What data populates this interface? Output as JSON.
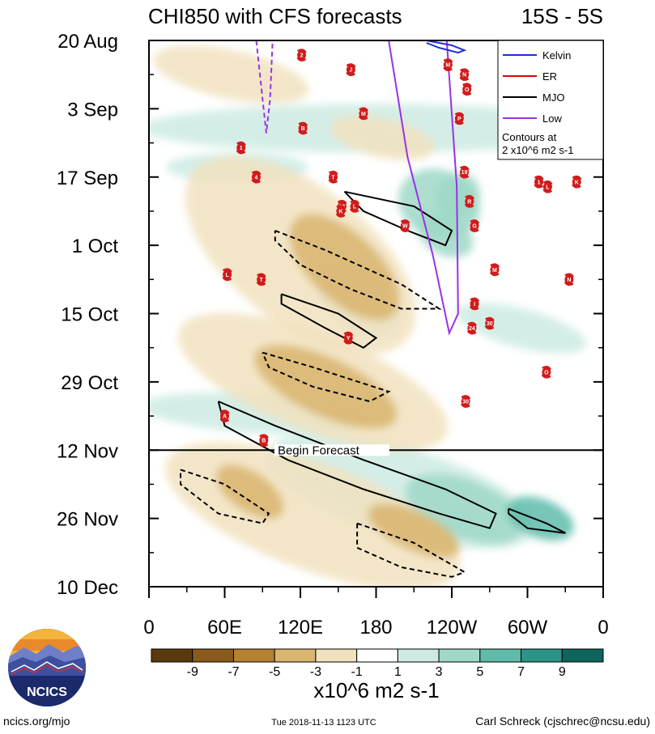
{
  "chart_data": {
    "type": "heatmap",
    "title_left": "CHI850 with CFS forecasts",
    "title_right": "15S - 5S",
    "x_ticks": [
      "0",
      "60E",
      "120E",
      "180",
      "120W",
      "60W",
      "0"
    ],
    "x_tick_values": [
      0,
      60,
      120,
      180,
      240,
      300,
      360
    ],
    "y_ticks": [
      "20 Aug",
      "3 Sep",
      "17 Sep",
      "1 Oct",
      "15 Oct",
      "29 Oct",
      "12 Nov",
      "26 Nov",
      "10 Dec"
    ],
    "y_tick_days": [
      0,
      14,
      28,
      42,
      56,
      70,
      84,
      98,
      112
    ],
    "forecast_start_day": 84,
    "forecast_label": "Begin Forecast",
    "colorbar": {
      "levels": [
        -11,
        -9,
        -7,
        -5,
        -3,
        -1,
        1,
        3,
        5,
        7,
        9,
        11
      ],
      "tick_labels": [
        "-9",
        "-7",
        "-5",
        "-3",
        "-1",
        "1",
        "3",
        "5",
        "7",
        "9"
      ],
      "colors": [
        "#5a3a0c",
        "#8a5a1c",
        "#b7802e",
        "#d9b56e",
        "#f1e2be",
        "#ffffff",
        "#cdebe3",
        "#9fd8c8",
        "#5fbcaa",
        "#2a9486",
        "#0c665c"
      ],
      "units": "x10^6 m2 s-1"
    },
    "legend": {
      "placement": "top-right",
      "entries": [
        {
          "label": "Kelvin",
          "color": "#1f2fdc",
          "dash": false
        },
        {
          "label": "ER",
          "color": "#e00000",
          "dash": false
        },
        {
          "label": "MJO",
          "color": "#000000",
          "dash": false
        },
        {
          "label": "Low",
          "color": "#9b30e6",
          "dash": false
        }
      ],
      "note_line1": "Contours at",
      "note_line2": "2 x10^6 m2 s-1"
    },
    "anomaly_blobs": [
      {
        "sign": 1,
        "v": 2.5,
        "pts": [
          [
            0,
            18
          ],
          [
            360,
            18
          ]
        ],
        "w": 5
      },
      {
        "sign": 1,
        "v": 3.5,
        "pts": [
          [
            205,
            31
          ],
          [
            255,
            36
          ]
        ],
        "w": 7
      },
      {
        "sign": 1,
        "v": 4.5,
        "pts": [
          [
            235,
            31
          ],
          [
            255,
            33
          ]
        ],
        "w": 5
      },
      {
        "sign": 1,
        "v": 4.5,
        "pts": [
          [
            220,
            38
          ],
          [
            250,
            42
          ]
        ],
        "w": 4
      },
      {
        "sign": 1,
        "v": 2.5,
        "pts": [
          [
            140,
            48
          ],
          [
            190,
            58
          ]
        ],
        "w": 6
      },
      {
        "sign": 1,
        "v": 2.5,
        "pts": [
          [
            0,
            75
          ],
          [
            170,
            78
          ]
        ],
        "w": 4
      },
      {
        "sign": 1,
        "v": 2.5,
        "pts": [
          [
            100,
            85
          ],
          [
            300,
            100
          ]
        ],
        "w": 9
      },
      {
        "sign": 1,
        "v": 4.5,
        "pts": [
          [
            210,
            92
          ],
          [
            290,
            100
          ]
        ],
        "w": 6
      },
      {
        "sign": 1,
        "v": 6.5,
        "pts": [
          [
            290,
            96
          ],
          [
            330,
            100
          ]
        ],
        "w": 4
      },
      {
        "sign": 1,
        "v": 2.5,
        "pts": [
          [
            20,
            26
          ],
          [
            120,
            26
          ]
        ],
        "w": 3
      },
      {
        "sign": 1,
        "v": 2.5,
        "pts": [
          [
            250,
            56
          ],
          [
            340,
            62
          ]
        ],
        "w": 4
      },
      {
        "sign": -1,
        "v": 2.5,
        "pts": [
          [
            40,
            28
          ],
          [
            200,
            60
          ]
        ],
        "w": 14
      },
      {
        "sign": -1,
        "v": 4.5,
        "pts": [
          [
            120,
            38
          ],
          [
            190,
            55
          ]
        ],
        "w": 7
      },
      {
        "sign": -1,
        "v": 2.5,
        "pts": [
          [
            30,
            60
          ],
          [
            230,
            80
          ]
        ],
        "w": 10
      },
      {
        "sign": -1,
        "v": 4.5,
        "pts": [
          [
            90,
            65
          ],
          [
            190,
            77
          ]
        ],
        "w": 6
      },
      {
        "sign": -1,
        "v": 2.5,
        "pts": [
          [
            20,
            87
          ],
          [
            240,
            108
          ]
        ],
        "w": 11
      },
      {
        "sign": -1,
        "v": 3.5,
        "pts": [
          [
            60,
            89
          ],
          [
            100,
            96
          ]
        ],
        "w": 4
      },
      {
        "sign": -1,
        "v": 3.5,
        "pts": [
          [
            180,
            97
          ],
          [
            240,
            104
          ]
        ],
        "w": 4
      },
      {
        "sign": -1,
        "v": 2.5,
        "pts": [
          [
            10,
            4
          ],
          [
            120,
            10
          ]
        ],
        "w": 5
      },
      {
        "sign": -1,
        "v": 2.5,
        "pts": [
          [
            150,
            18
          ],
          [
            220,
            22
          ]
        ],
        "w": 4
      }
    ],
    "mjo_contours": [
      {
        "style": "solid",
        "pts": [
          [
            155,
            31
          ],
          [
            210,
            34
          ],
          [
            240,
            39
          ],
          [
            235,
            42
          ],
          [
            205,
            39
          ],
          [
            170,
            35
          ],
          [
            155,
            31
          ]
        ]
      },
      {
        "style": "solid",
        "pts": [
          [
            105,
            52
          ],
          [
            150,
            56
          ],
          [
            180,
            61
          ],
          [
            170,
            63
          ],
          [
            140,
            59
          ],
          [
            105,
            54
          ],
          [
            105,
            52
          ]
        ]
      },
      {
        "style": "solid",
        "pts": [
          [
            55,
            74
          ],
          [
            100,
            79
          ],
          [
            170,
            86
          ],
          [
            235,
            92
          ],
          [
            275,
            97
          ],
          [
            270,
            100
          ],
          [
            230,
            97
          ],
          [
            170,
            92
          ],
          [
            110,
            86
          ],
          [
            60,
            79
          ],
          [
            55,
            74
          ]
        ]
      },
      {
        "style": "solid",
        "pts": [
          [
            285,
            96
          ],
          [
            315,
            99
          ],
          [
            330,
            101
          ],
          [
            300,
            100
          ],
          [
            285,
            97
          ],
          [
            285,
            96
          ]
        ]
      },
      {
        "style": "dashed",
        "pts": [
          [
            100,
            39
          ],
          [
            140,
            43
          ],
          [
            200,
            50
          ],
          [
            230,
            55
          ],
          [
            200,
            55
          ],
          [
            160,
            51
          ],
          [
            120,
            46
          ],
          [
            100,
            41
          ],
          [
            100,
            39
          ]
        ]
      },
      {
        "style": "dashed",
        "pts": [
          [
            90,
            64
          ],
          [
            130,
            67
          ],
          [
            190,
            72
          ],
          [
            175,
            74
          ],
          [
            130,
            71
          ],
          [
            95,
            67
          ],
          [
            90,
            64
          ]
        ]
      },
      {
        "style": "dashed",
        "pts": [
          [
            25,
            88
          ],
          [
            60,
            91
          ],
          [
            95,
            97
          ],
          [
            90,
            99
          ],
          [
            55,
            97
          ],
          [
            25,
            91
          ],
          [
            25,
            88
          ]
        ]
      },
      {
        "style": "dashed",
        "pts": [
          [
            165,
            99
          ],
          [
            210,
            103
          ],
          [
            250,
            109
          ],
          [
            240,
            110
          ],
          [
            200,
            108
          ],
          [
            165,
            104
          ],
          [
            165,
            99
          ]
        ]
      }
    ],
    "low_contours": [
      {
        "style": "solid",
        "pts": [
          [
            190,
            0
          ],
          [
            205,
            24
          ],
          [
            225,
            44
          ],
          [
            238,
            60
          ],
          [
            245,
            56
          ],
          [
            244,
            30
          ],
          [
            236,
            0
          ]
        ]
      },
      {
        "style": "dashed",
        "pts": [
          [
            85,
            0
          ],
          [
            90,
            12
          ],
          [
            93,
            19
          ],
          [
            96,
            12
          ],
          [
            98,
            0
          ]
        ]
      }
    ],
    "kelvin_contours": [
      {
        "style": "solid",
        "pts": [
          [
            220,
            0
          ],
          [
            240,
            1
          ],
          [
            250,
            2
          ],
          [
            245,
            2.5
          ],
          [
            230,
            1.5
          ],
          [
            220,
            0.5
          ]
        ]
      }
    ],
    "storms": [
      {
        "label": "2",
        "lon": 121,
        "day": 3
      },
      {
        "label": "J",
        "lon": 160,
        "day": 6
      },
      {
        "label": "M",
        "lon": 237,
        "day": 5
      },
      {
        "label": "N",
        "lon": 250,
        "day": 7
      },
      {
        "label": "O",
        "lon": 252,
        "day": 10
      },
      {
        "label": "M",
        "lon": 170,
        "day": 15
      },
      {
        "label": "B",
        "lon": 122,
        "day": 18
      },
      {
        "label": "P",
        "lon": 246,
        "day": 16
      },
      {
        "label": "1",
        "lon": 73,
        "day": 22
      },
      {
        "label": "4",
        "lon": 85,
        "day": 28
      },
      {
        "label": "T",
        "lon": 146,
        "day": 28
      },
      {
        "label": "19",
        "lon": 250,
        "day": 27
      },
      {
        "label": "1",
        "lon": 309,
        "day": 29
      },
      {
        "label": "L",
        "lon": 316,
        "day": 30
      },
      {
        "label": "K",
        "lon": 339,
        "day": 29
      },
      {
        "label": "L",
        "lon": 163,
        "day": 34
      },
      {
        "label": "26",
        "lon": 153,
        "day": 34
      },
      {
        "label": "K",
        "lon": 152,
        "day": 35
      },
      {
        "label": "R",
        "lon": 254,
        "day": 33
      },
      {
        "label": "W",
        "lon": 203,
        "day": 38
      },
      {
        "label": "G",
        "lon": 258,
        "day": 38
      },
      {
        "label": "L",
        "lon": 62,
        "day": 48
      },
      {
        "label": "T",
        "lon": 89,
        "day": 49
      },
      {
        "label": "M",
        "lon": 274,
        "day": 47
      },
      {
        "label": "N",
        "lon": 333,
        "day": 49
      },
      {
        "label": "I",
        "lon": 258,
        "day": 54
      },
      {
        "label": "24",
        "lon": 256,
        "day": 59
      },
      {
        "label": "30",
        "lon": 270,
        "day": 58
      },
      {
        "label": "Y",
        "lon": 158,
        "day": 61
      },
      {
        "label": "O",
        "lon": 315,
        "day": 68
      },
      {
        "label": "30",
        "lon": 251,
        "day": 74
      },
      {
        "label": "A",
        "lon": 60,
        "day": 77
      },
      {
        "label": "B",
        "lon": 91,
        "day": 82
      }
    ]
  },
  "footer": {
    "logo_text": "NCICS",
    "url": "ncics.org/mjo",
    "timestamp": "Tue 2018-11-13 1123 UTC",
    "author": "Carl Schreck (cjschrec@ncsu.edu)"
  }
}
